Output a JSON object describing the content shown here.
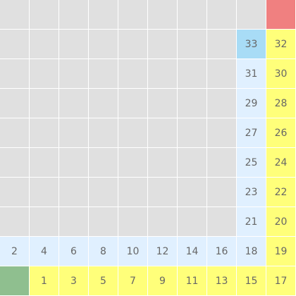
{
  "board": {
    "rows": 10,
    "cols": 10,
    "colors": {
      "empty": "#e0e0e0",
      "path_light": "#e0f0ff",
      "path_yellow": "#ffff7a",
      "current": "#a8dcf6",
      "start": "#8fbf8f",
      "goal": "#f08080"
    },
    "cells": [
      {
        "r": 0,
        "c": 9,
        "label": "",
        "kind": "goal"
      },
      {
        "r": 1,
        "c": 8,
        "label": "33",
        "kind": "current"
      },
      {
        "r": 1,
        "c": 9,
        "label": "32",
        "kind": "path_yellow"
      },
      {
        "r": 2,
        "c": 8,
        "label": "31",
        "kind": "path_light"
      },
      {
        "r": 2,
        "c": 9,
        "label": "30",
        "kind": "path_yellow"
      },
      {
        "r": 3,
        "c": 8,
        "label": "29",
        "kind": "path_light"
      },
      {
        "r": 3,
        "c": 9,
        "label": "28",
        "kind": "path_yellow"
      },
      {
        "r": 4,
        "c": 8,
        "label": "27",
        "kind": "path_light"
      },
      {
        "r": 4,
        "c": 9,
        "label": "26",
        "kind": "path_yellow"
      },
      {
        "r": 5,
        "c": 8,
        "label": "25",
        "kind": "path_light"
      },
      {
        "r": 5,
        "c": 9,
        "label": "24",
        "kind": "path_yellow"
      },
      {
        "r": 6,
        "c": 8,
        "label": "23",
        "kind": "path_light"
      },
      {
        "r": 6,
        "c": 9,
        "label": "22",
        "kind": "path_yellow"
      },
      {
        "r": 7,
        "c": 8,
        "label": "21",
        "kind": "path_light"
      },
      {
        "r": 7,
        "c": 9,
        "label": "20",
        "kind": "path_yellow"
      },
      {
        "r": 8,
        "c": 0,
        "label": "2",
        "kind": "path_light"
      },
      {
        "r": 8,
        "c": 1,
        "label": "4",
        "kind": "path_light"
      },
      {
        "r": 8,
        "c": 2,
        "label": "6",
        "kind": "path_light"
      },
      {
        "r": 8,
        "c": 3,
        "label": "8",
        "kind": "path_light"
      },
      {
        "r": 8,
        "c": 4,
        "label": "10",
        "kind": "path_light"
      },
      {
        "r": 8,
        "c": 5,
        "label": "12",
        "kind": "path_light"
      },
      {
        "r": 8,
        "c": 6,
        "label": "14",
        "kind": "path_light"
      },
      {
        "r": 8,
        "c": 7,
        "label": "16",
        "kind": "path_light"
      },
      {
        "r": 8,
        "c": 8,
        "label": "18",
        "kind": "path_light"
      },
      {
        "r": 8,
        "c": 9,
        "label": "19",
        "kind": "path_yellow"
      },
      {
        "r": 9,
        "c": 0,
        "label": "",
        "kind": "start"
      },
      {
        "r": 9,
        "c": 1,
        "label": "1",
        "kind": "path_yellow"
      },
      {
        "r": 9,
        "c": 2,
        "label": "3",
        "kind": "path_yellow"
      },
      {
        "r": 9,
        "c": 3,
        "label": "5",
        "kind": "path_yellow"
      },
      {
        "r": 9,
        "c": 4,
        "label": "7",
        "kind": "path_yellow"
      },
      {
        "r": 9,
        "c": 5,
        "label": "9",
        "kind": "path_yellow"
      },
      {
        "r": 9,
        "c": 6,
        "label": "11",
        "kind": "path_yellow"
      },
      {
        "r": 9,
        "c": 7,
        "label": "13",
        "kind": "path_yellow"
      },
      {
        "r": 9,
        "c": 8,
        "label": "15",
        "kind": "path_yellow"
      },
      {
        "r": 9,
        "c": 9,
        "label": "17",
        "kind": "path_yellow"
      }
    ]
  }
}
